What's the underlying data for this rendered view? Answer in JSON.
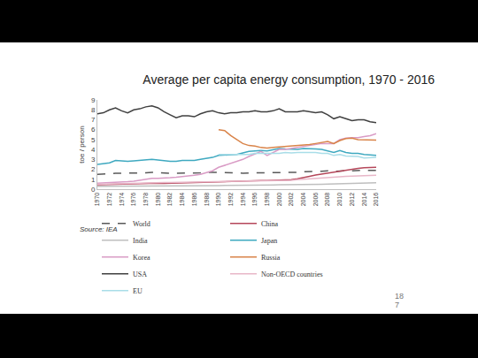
{
  "chart_data": {
    "type": "line",
    "title": "Average per capita energy consumption, 1970 - 2016",
    "y_label": "toe / person",
    "source": "Source: IEA",
    "page_number": "187",
    "x": [
      1970,
      1971,
      1972,
      1973,
      1974,
      1975,
      1976,
      1977,
      1978,
      1979,
      1980,
      1981,
      1982,
      1983,
      1984,
      1985,
      1986,
      1987,
      1988,
      1989,
      1990,
      1991,
      1992,
      1993,
      1994,
      1995,
      1996,
      1997,
      1998,
      1999,
      2000,
      2001,
      2002,
      2003,
      2004,
      2005,
      2006,
      2007,
      2008,
      2009,
      2010,
      2011,
      2012,
      2013,
      2014,
      2015,
      2016
    ],
    "xlim": [
      1970,
      2016
    ],
    "xticks": [
      1970,
      1972,
      1974,
      1976,
      1978,
      1980,
      1982,
      1984,
      1986,
      1988,
      1990,
      1992,
      1994,
      1996,
      1998,
      2000,
      2002,
      2004,
      2006,
      2008,
      2010,
      2012,
      2014,
      2016
    ],
    "ylim": [
      0,
      9
    ],
    "yticks": [
      0,
      1,
      2,
      3,
      4,
      5,
      6,
      7,
      8,
      9
    ],
    "grid": false,
    "legend": "bottom",
    "series": [
      {
        "name": "World",
        "color": "#595959",
        "line_style": "dashed",
        "values": [
          1.5,
          1.5,
          1.55,
          1.6,
          1.6,
          1.6,
          1.6,
          1.65,
          1.65,
          1.7,
          1.65,
          1.6,
          1.6,
          1.6,
          1.6,
          1.6,
          1.65,
          1.65,
          1.7,
          1.7,
          1.7,
          1.7,
          1.65,
          1.65,
          1.6,
          1.65,
          1.65,
          1.65,
          1.65,
          1.65,
          1.65,
          1.65,
          1.65,
          1.7,
          1.75,
          1.8,
          1.8,
          1.8,
          1.85,
          1.8,
          1.85,
          1.85,
          1.85,
          1.9,
          1.9,
          1.9,
          1.9
        ]
      },
      {
        "name": "China",
        "color": "#b5475a",
        "line_style": "solid",
        "values": [
          0.45,
          0.47,
          0.48,
          0.5,
          0.5,
          0.52,
          0.53,
          0.55,
          0.58,
          0.6,
          0.6,
          0.58,
          0.6,
          0.62,
          0.65,
          0.68,
          0.7,
          0.72,
          0.75,
          0.76,
          0.75,
          0.76,
          0.78,
          0.8,
          0.82,
          0.85,
          0.88,
          0.87,
          0.86,
          0.87,
          0.88,
          0.9,
          0.95,
          1.05,
          1.2,
          1.3,
          1.42,
          1.52,
          1.6,
          1.7,
          1.85,
          1.95,
          2.0,
          2.1,
          2.15,
          2.15,
          2.2
        ]
      },
      {
        "name": "India",
        "color": "#bfbfbf",
        "line_style": "solid",
        "values": [
          0.3,
          0.3,
          0.3,
          0.3,
          0.3,
          0.31,
          0.31,
          0.31,
          0.32,
          0.32,
          0.32,
          0.32,
          0.33,
          0.33,
          0.33,
          0.34,
          0.34,
          0.35,
          0.35,
          0.36,
          0.36,
          0.37,
          0.37,
          0.38,
          0.39,
          0.4,
          0.41,
          0.41,
          0.42,
          0.43,
          0.44,
          0.44,
          0.44,
          0.45,
          0.46,
          0.47,
          0.48,
          0.5,
          0.52,
          0.54,
          0.56,
          0.58,
          0.6,
          0.61,
          0.63,
          0.64,
          0.65
        ]
      },
      {
        "name": "Japan",
        "color": "#3fa9c0",
        "line_style": "solid",
        "values": [
          2.5,
          2.55,
          2.65,
          2.9,
          2.85,
          2.8,
          2.85,
          2.9,
          2.9,
          3.0,
          2.95,
          2.85,
          2.8,
          2.8,
          2.9,
          2.9,
          2.9,
          3.0,
          3.1,
          3.2,
          3.4,
          3.45,
          3.5,
          3.5,
          3.65,
          3.8,
          3.85,
          3.9,
          3.85,
          3.95,
          4.1,
          4.05,
          4.05,
          4.0,
          4.1,
          4.1,
          4.05,
          4.0,
          3.85,
          3.7,
          3.9,
          3.7,
          3.6,
          3.6,
          3.5,
          3.45,
          3.4
        ]
      },
      {
        "name": "Korea",
        "color": "#d99bc5",
        "line_style": "solid",
        "values": [
          0.6,
          0.62,
          0.65,
          0.7,
          0.72,
          0.75,
          0.8,
          0.9,
          1.0,
          1.1,
          1.1,
          1.1,
          1.15,
          1.2,
          1.25,
          1.3,
          1.4,
          1.5,
          1.65,
          1.85,
          2.2,
          2.4,
          2.6,
          2.85,
          3.0,
          3.3,
          3.55,
          3.8,
          3.4,
          3.7,
          4.0,
          4.0,
          4.1,
          4.2,
          4.3,
          4.4,
          4.45,
          4.6,
          4.6,
          4.6,
          5.0,
          5.15,
          5.2,
          5.2,
          5.3,
          5.4,
          5.6
        ]
      },
      {
        "name": "Russia",
        "color": "#d9844a",
        "line_style": "solid",
        "values": [
          null,
          null,
          null,
          null,
          null,
          null,
          null,
          null,
          null,
          null,
          null,
          null,
          null,
          null,
          null,
          null,
          null,
          null,
          null,
          null,
          6.0,
          5.9,
          5.4,
          5.0,
          4.6,
          4.4,
          4.35,
          4.2,
          4.15,
          4.2,
          4.25,
          4.3,
          4.3,
          4.4,
          4.45,
          4.5,
          4.6,
          4.7,
          4.8,
          4.6,
          4.9,
          5.1,
          5.15,
          5.0,
          5.0,
          4.95,
          4.95
        ]
      },
      {
        "name": "USA",
        "color": "#404040",
        "line_style": "solid",
        "values": [
          7.6,
          7.7,
          8.0,
          8.2,
          7.9,
          7.7,
          8.0,
          8.1,
          8.3,
          8.4,
          8.2,
          7.8,
          7.5,
          7.2,
          7.4,
          7.4,
          7.3,
          7.6,
          7.8,
          7.9,
          7.7,
          7.6,
          7.7,
          7.7,
          7.8,
          7.8,
          7.9,
          7.8,
          7.8,
          7.9,
          8.1,
          7.8,
          7.8,
          7.8,
          7.9,
          7.8,
          7.7,
          7.8,
          7.5,
          7.1,
          7.3,
          7.1,
          6.9,
          7.0,
          7.0,
          6.8,
          6.7
        ]
      },
      {
        "name": "Non-OECD countries",
        "color": "#e8b7c8",
        "line_style": "solid",
        "values": [
          0.5,
          0.52,
          0.54,
          0.56,
          0.57,
          0.58,
          0.6,
          0.62,
          0.64,
          0.66,
          0.66,
          0.66,
          0.67,
          0.68,
          0.7,
          0.72,
          0.74,
          0.76,
          0.78,
          0.8,
          0.8,
          0.8,
          0.8,
          0.8,
          0.8,
          0.82,
          0.82,
          0.83,
          0.83,
          0.84,
          0.85,
          0.87,
          0.9,
          0.95,
          1.0,
          1.05,
          1.1,
          1.15,
          1.17,
          1.2,
          1.26,
          1.3,
          1.32,
          1.35,
          1.37,
          1.38,
          1.4
        ]
      },
      {
        "name": "EU",
        "color": "#a9dde8",
        "line_style": "solid",
        "values": [
          null,
          null,
          null,
          null,
          null,
          null,
          null,
          null,
          null,
          null,
          null,
          null,
          null,
          null,
          null,
          null,
          null,
          null,
          null,
          null,
          3.5,
          3.5,
          3.45,
          3.45,
          3.45,
          3.5,
          3.6,
          3.6,
          3.6,
          3.6,
          3.6,
          3.7,
          3.65,
          3.7,
          3.7,
          3.7,
          3.7,
          3.6,
          3.6,
          3.4,
          3.5,
          3.35,
          3.3,
          3.3,
          3.15,
          3.2,
          3.2
        ]
      }
    ]
  }
}
